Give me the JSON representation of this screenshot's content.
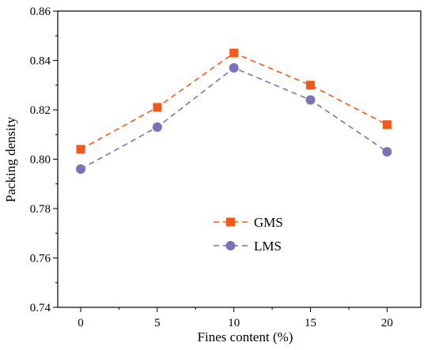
{
  "chart_data": {
    "type": "line",
    "xlabel": "Fines content (%)",
    "ylabel": "Packing density",
    "x": [
      0,
      5,
      10,
      15,
      20
    ],
    "xlim": [
      -1.5,
      22.2
    ],
    "ylim": [
      0.74,
      0.86
    ],
    "xticks": [
      "0",
      "5",
      "10",
      "15",
      "20"
    ],
    "yticks": [
      "0.74",
      "0.76",
      "0.78",
      "0.80",
      "0.82",
      "0.84",
      "0.86"
    ],
    "grid": false,
    "legend_position": "lower-center",
    "series": [
      {
        "name": "GMS",
        "values": [
          0.804,
          0.821,
          0.843,
          0.83,
          0.814
        ],
        "color": "#f15a1b",
        "marker": "square",
        "line_style": "dashed"
      },
      {
        "name": "LMS",
        "values": [
          0.796,
          0.813,
          0.837,
          0.824,
          0.803
        ],
        "color": "#7b72b8",
        "marker": "circle",
        "line_style": "dashed"
      }
    ]
  }
}
